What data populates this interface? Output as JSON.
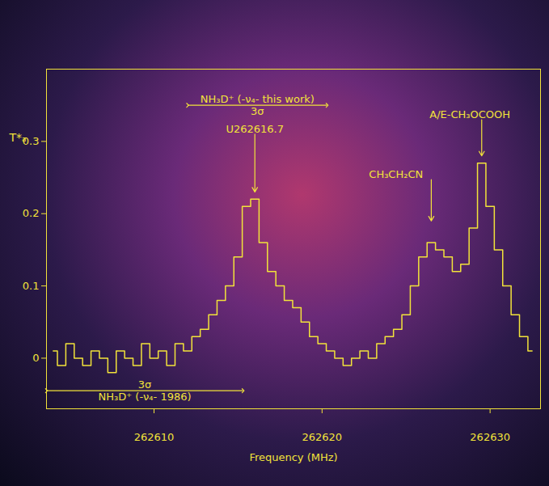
{
  "chart_data": {
    "type": "line",
    "x_label": "Frequency (MHz)",
    "y_label": "T*ₐ",
    "color": "#f2e33a",
    "line_style": "step",
    "grid": false,
    "xlim": [
      262603.6,
      262633.0
    ],
    "ylim": [
      -0.07,
      0.4
    ],
    "xticks": [
      262610,
      262620,
      262630
    ],
    "yticks": [
      0,
      0.1,
      0.2,
      0.3
    ],
    "x": [
      262604,
      262604.5,
      262605,
      262605.5,
      262606,
      262606.5,
      262607,
      262607.5,
      262608,
      262608.5,
      262609,
      262609.5,
      262610,
      262610.5,
      262611,
      262611.5,
      262612,
      262612.5,
      262613,
      262613.5,
      262614,
      262614.5,
      262615,
      262615.5,
      262616,
      262616.5,
      262617,
      262617.5,
      262618,
      262618.5,
      262619,
      262619.5,
      262620,
      262620.5,
      262621,
      262621.5,
      262622,
      262622.5,
      262623,
      262623.5,
      262624,
      262624.5,
      262625,
      262625.5,
      262626,
      262626.5,
      262627,
      262627.5,
      262628,
      262628.5,
      262629,
      262629.5,
      262630,
      262630.5,
      262631,
      262631.5,
      262632,
      262632.5
    ],
    "values": [
      0.01,
      -0.01,
      0.02,
      0.0,
      -0.01,
      0.01,
      0.0,
      -0.02,
      0.01,
      0.0,
      -0.01,
      0.02,
      0.0,
      0.01,
      -0.01,
      0.02,
      0.01,
      0.03,
      0.04,
      0.06,
      0.08,
      0.1,
      0.14,
      0.21,
      0.22,
      0.16,
      0.12,
      0.1,
      0.08,
      0.07,
      0.05,
      0.03,
      0.02,
      0.01,
      0.0,
      -0.01,
      0.0,
      0.01,
      0.0,
      0.02,
      0.03,
      0.04,
      0.06,
      0.1,
      0.14,
      0.16,
      0.15,
      0.14,
      0.12,
      0.13,
      0.18,
      0.27,
      0.21,
      0.15,
      0.1,
      0.06,
      0.03,
      0.01
    ],
    "annotations": [
      {
        "text": "U262616.7",
        "x": 262616,
        "y": 0.23,
        "text_x": 262616,
        "text_y": 0.31
      },
      {
        "text": "CH₃CH₂CN",
        "x": 262626.5,
        "y": 0.19,
        "text_x": 262624.4,
        "text_y": 0.247
      },
      {
        "text": "A/E-CH₃OCOOH",
        "x": 262629.5,
        "y": 0.28,
        "text_x": 262628.8,
        "text_y": 0.33
      }
    ],
    "ranges": [
      {
        "text": "NH₃D⁺ (-ν₄- this work)",
        "sigma_label": "3σ",
        "x1": 262612,
        "x2": 262620.3,
        "y": 0.35
      },
      {
        "text": "NH₃D⁺ (-ν₄- 1986)",
        "sigma_label": "3σ",
        "x1": 262603.6,
        "x2": 262615.3,
        "y": -0.045
      }
    ]
  }
}
